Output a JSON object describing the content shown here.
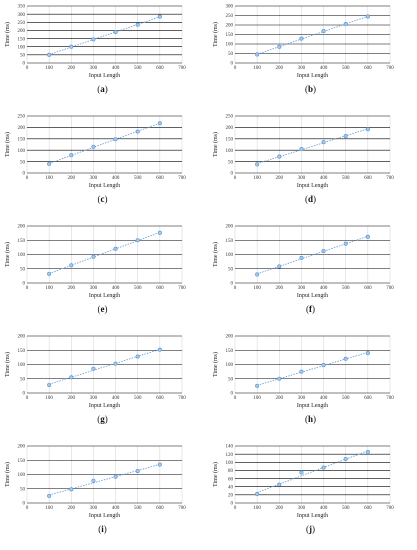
{
  "colors": {
    "series": "#5b9bd5",
    "grid": "#000000",
    "axis_text": "#333333"
  },
  "chart_data": [
    {
      "type": "scatter",
      "panel": "a",
      "xlabel": "Input Length",
      "ylabel": "Time (ms)",
      "xlim": [
        0,
        700
      ],
      "xticks": [
        0,
        100,
        200,
        300,
        400,
        500,
        600,
        700
      ],
      "ylim": [
        0,
        350
      ],
      "yticks": [
        0,
        50,
        100,
        150,
        200,
        250,
        300,
        350
      ],
      "x": [
        100,
        200,
        300,
        400,
        500,
        600
      ],
      "y": [
        50,
        100,
        145,
        190,
        235,
        285
      ],
      "trendline": "linear dotted"
    },
    {
      "type": "scatter",
      "panel": "b",
      "xlabel": "Input Length",
      "ylabel": "Time (ms)",
      "xlim": [
        0,
        700
      ],
      "xticks": [
        0,
        100,
        200,
        300,
        400,
        500,
        600,
        700
      ],
      "ylim": [
        0,
        300
      ],
      "yticks": [
        0,
        50,
        100,
        150,
        200,
        250,
        300
      ],
      "x": [
        100,
        200,
        300,
        400,
        500,
        600
      ],
      "y": [
        45,
        85,
        128,
        168,
        205,
        245
      ],
      "trendline": "linear dotted"
    },
    {
      "type": "scatter",
      "panel": "c",
      "xlabel": "Input Length",
      "ylabel": "Time (ms)",
      "xlim": [
        0,
        700
      ],
      "xticks": [
        0,
        100,
        200,
        300,
        400,
        500,
        600,
        700
      ],
      "ylim": [
        0,
        250
      ],
      "yticks": [
        0,
        50,
        100,
        150,
        200,
        250
      ],
      "x": [
        100,
        200,
        300,
        400,
        500,
        600
      ],
      "y": [
        40,
        78,
        115,
        148,
        182,
        218
      ],
      "trendline": "linear dotted"
    },
    {
      "type": "scatter",
      "panel": "d",
      "xlabel": "Input Length",
      "ylabel": "Time (ms)",
      "xlim": [
        0,
        700
      ],
      "xticks": [
        0,
        100,
        200,
        300,
        400,
        500,
        600,
        700
      ],
      "ylim": [
        0,
        250
      ],
      "yticks": [
        0,
        50,
        100,
        150,
        200,
        250
      ],
      "x": [
        100,
        200,
        300,
        400,
        500,
        600
      ],
      "y": [
        38,
        72,
        105,
        135,
        162,
        192
      ],
      "trendline": "linear dotted"
    },
    {
      "type": "scatter",
      "panel": "e",
      "xlabel": "Input Length",
      "ylabel": "Time (ms)",
      "xlim": [
        0,
        700
      ],
      "xticks": [
        0,
        100,
        200,
        300,
        400,
        500,
        600,
        700
      ],
      "ylim": [
        0,
        200
      ],
      "yticks": [
        0,
        50,
        100,
        150,
        200
      ],
      "x": [
        100,
        200,
        300,
        400,
        500,
        600
      ],
      "y": [
        32,
        62,
        92,
        120,
        150,
        176
      ],
      "trendline": "linear dotted"
    },
    {
      "type": "scatter",
      "panel": "f",
      "xlabel": "Input Length",
      "ylabel": "Time (ms)",
      "xlim": [
        0,
        700
      ],
      "xticks": [
        0,
        100,
        200,
        300,
        400,
        500,
        600,
        700
      ],
      "ylim": [
        0,
        200
      ],
      "yticks": [
        0,
        50,
        100,
        150,
        200
      ],
      "x": [
        100,
        200,
        300,
        400,
        500,
        600
      ],
      "y": [
        30,
        58,
        88,
        112,
        138,
        162
      ],
      "trendline": "linear dotted"
    },
    {
      "type": "scatter",
      "panel": "g",
      "xlabel": "Input Length",
      "ylabel": "Time (ms)",
      "xlim": [
        0,
        700
      ],
      "xticks": [
        0,
        100,
        200,
        300,
        400,
        500,
        600,
        700
      ],
      "ylim": [
        0,
        200
      ],
      "yticks": [
        0,
        50,
        100,
        150,
        200
      ],
      "x": [
        100,
        200,
        300,
        400,
        500,
        600
      ],
      "y": [
        28,
        55,
        85,
        103,
        128,
        152
      ],
      "trendline": "linear dotted"
    },
    {
      "type": "scatter",
      "panel": "h",
      "xlabel": "Input Length",
      "ylabel": "Time (ms)",
      "xlim": [
        0,
        700
      ],
      "xticks": [
        0,
        100,
        200,
        300,
        400,
        500,
        600,
        700
      ],
      "ylim": [
        0,
        200
      ],
      "yticks": [
        0,
        50,
        100,
        150,
        200
      ],
      "x": [
        100,
        200,
        300,
        400,
        500,
        600
      ],
      "y": [
        25,
        50,
        75,
        98,
        120,
        140
      ],
      "trendline": "linear dotted"
    },
    {
      "type": "scatter",
      "panel": "i",
      "xlabel": "Input Length",
      "ylabel": "Time (ms)",
      "xlim": [
        0,
        700
      ],
      "xticks": [
        0,
        100,
        200,
        300,
        400,
        500,
        600,
        700
      ],
      "ylim": [
        0,
        200
      ],
      "yticks": [
        0,
        50,
        100,
        150,
        200
      ],
      "x": [
        100,
        200,
        300,
        400,
        500,
        600
      ],
      "y": [
        25,
        48,
        78,
        92,
        112,
        135
      ],
      "trendline": "linear dotted"
    },
    {
      "type": "scatter",
      "panel": "j",
      "xlabel": "Input Length",
      "ylabel": "Time (ms)",
      "xlim": [
        0,
        700
      ],
      "xticks": [
        0,
        100,
        200,
        300,
        400,
        500,
        600,
        700
      ],
      "ylim": [
        0,
        140
      ],
      "yticks": [
        0,
        20,
        40,
        60,
        80,
        100,
        120,
        140
      ],
      "x": [
        100,
        200,
        300,
        400,
        500,
        600
      ],
      "y": [
        22,
        45,
        75,
        87,
        108,
        125
      ],
      "trendline": "linear dotted"
    }
  ]
}
